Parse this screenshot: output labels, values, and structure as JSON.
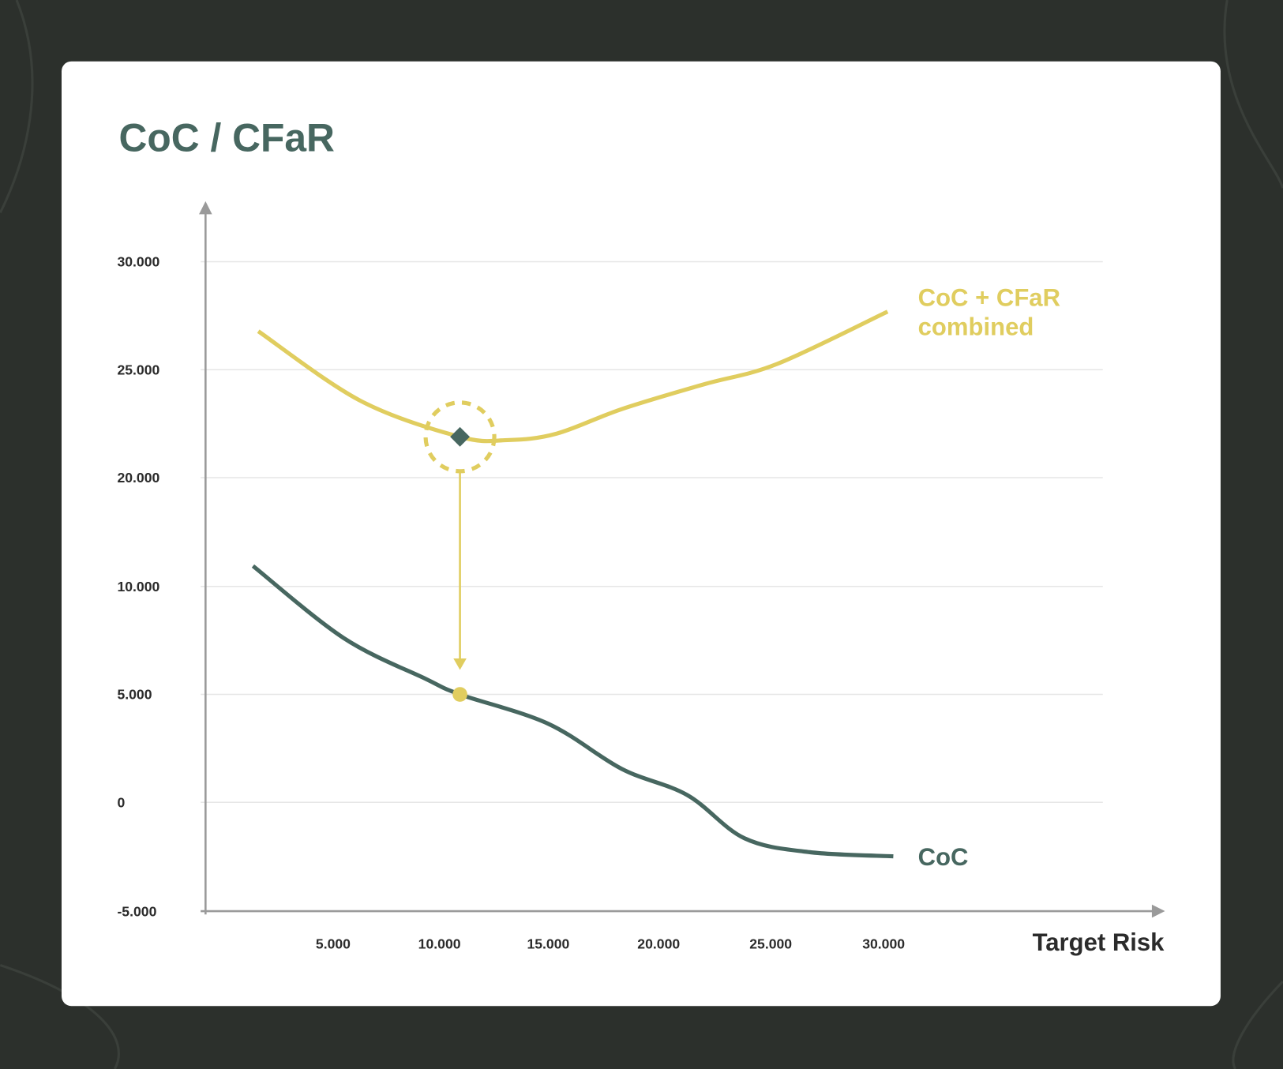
{
  "chart_data": {
    "type": "line",
    "title": "CoC / CFaR",
    "xlabel": "Target Risk",
    "ylabel": "",
    "x_ticks": [
      5000,
      10000,
      15000,
      20000,
      25000,
      30000
    ],
    "x_tick_labels": [
      "5.000",
      "10.000",
      "15.000",
      "20.000",
      "25.000",
      "30.000"
    ],
    "y_ticks": [
      30000,
      25000,
      20000,
      10000,
      5000,
      0,
      -5000
    ],
    "y_tick_labels": [
      "30.000",
      "25.000",
      "20.000",
      "10.000",
      "5.000",
      "0",
      "-5.000"
    ],
    "grid": true,
    "series": [
      {
        "name": "CoC + CFaR combined",
        "label_lines": [
          "CoC + CFaR",
          "combined"
        ],
        "color": "#e0cd5f",
        "x": [
          1600,
          6240,
          10760,
          12920,
          15150,
          18120,
          21830,
          25170,
          30180
        ],
        "y": [
          26780,
          23560,
          21890,
          21740,
          22040,
          23180,
          24320,
          25270,
          27690
        ]
      },
      {
        "name": "CoC",
        "label_lines": [
          "CoC"
        ],
        "color": "#476760",
        "x": [
          1360,
          5480,
          9200,
          10760,
          14770,
          18110,
          21080,
          23680,
          26650,
          30440
        ],
        "y": [
          11880,
          7610,
          5720,
          5000,
          3640,
          1550,
          340,
          -1650,
          -2290,
          -2480
        ]
      }
    ],
    "annotations": [
      {
        "type": "optimum-marker",
        "x": 10760,
        "y": 21890,
        "series": "CoC + CFaR combined"
      },
      {
        "type": "arrow",
        "from": [
          10760,
          21890
        ],
        "to": [
          10760,
          5000
        ]
      },
      {
        "type": "point",
        "x": 10760,
        "y": 5000,
        "series": "CoC"
      }
    ]
  }
}
